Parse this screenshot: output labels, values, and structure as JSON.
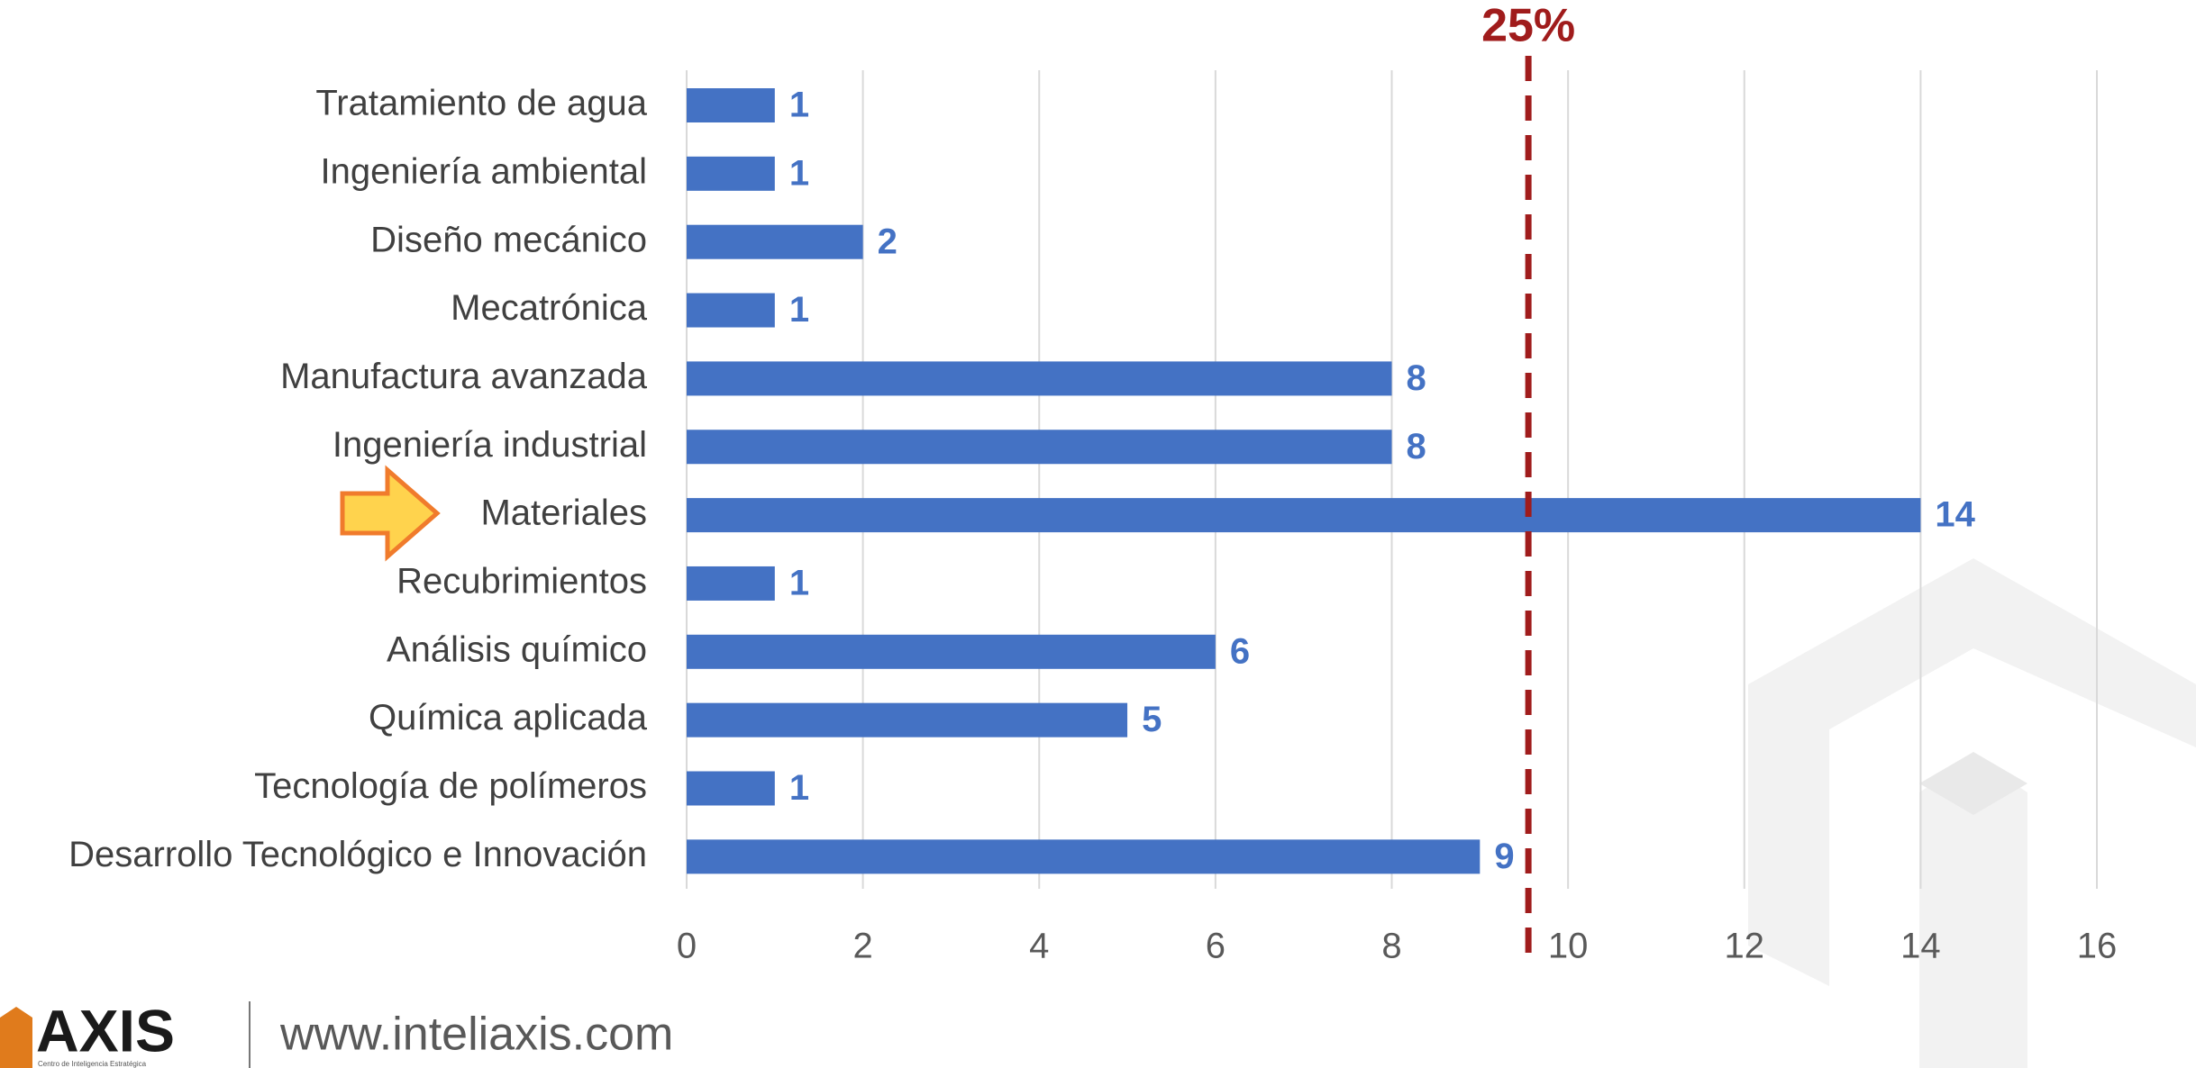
{
  "chart_data": {
    "type": "bar",
    "orientation": "horizontal",
    "categories": [
      "Tratamiento de agua",
      "Ingeniería ambiental",
      "Diseño mecánico",
      "Mecatrónica",
      "Manufactura avanzada",
      "Ingeniería industrial",
      "Materiales",
      "Recubrimientos",
      "Análisis químico",
      "Química aplicada",
      "Tecnología de polímeros",
      "Desarrollo Tecnológico e Innovación"
    ],
    "values": [
      1,
      1,
      2,
      1,
      8,
      8,
      14,
      1,
      6,
      5,
      1,
      9
    ],
    "color": "#4472c4",
    "xlim": [
      0,
      16
    ],
    "xticks": [
      0,
      2,
      4,
      6,
      8,
      10,
      12,
      14,
      16
    ],
    "grid": true,
    "reference_line": {
      "value": 9.55,
      "label": "25%",
      "color": "#a01c1c"
    }
  },
  "footer": {
    "logo": "AXIS",
    "logo_subtitle": "Centro de Inteligencia Estratégica",
    "url": "www.inteliaxis.com"
  }
}
